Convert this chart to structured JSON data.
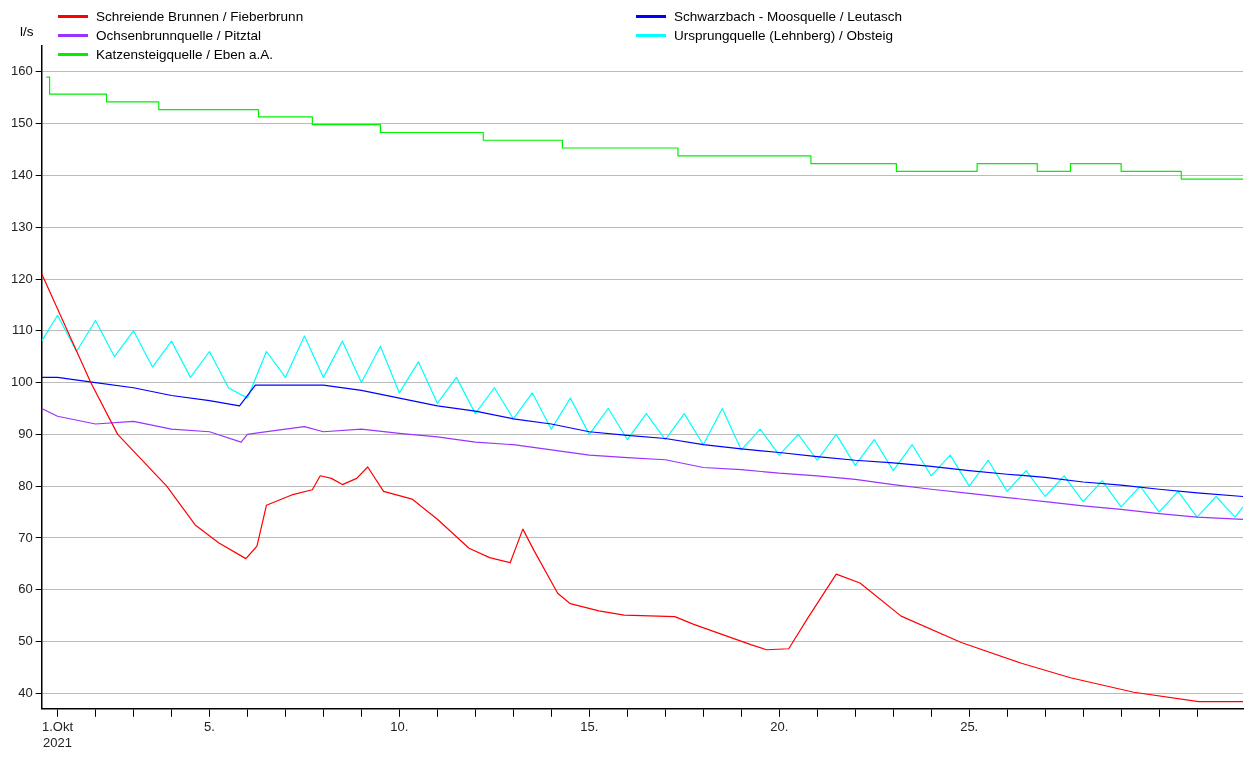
{
  "chart_data": {
    "type": "line",
    "ylabel": "l/s",
    "legend": "top",
    "grid": "y",
    "xlim": [
      "2021-09-30T14:00",
      "2021-11-01T05:00"
    ],
    "xticks": [
      {
        "value": "2021-10-01",
        "label": "1.Okt\n2021"
      },
      {
        "value": "2021-10-02",
        "label": null
      },
      {
        "value": "2021-10-03",
        "label": null
      },
      {
        "value": "2021-10-04",
        "label": null
      },
      {
        "value": "2021-10-05",
        "label": "5."
      },
      {
        "value": "2021-10-06",
        "label": null
      },
      {
        "value": "2021-10-07",
        "label": null
      },
      {
        "value": "2021-10-08",
        "label": null
      },
      {
        "value": "2021-10-09",
        "label": null
      },
      {
        "value": "2021-10-10",
        "label": "10."
      },
      {
        "value": "2021-10-11",
        "label": null
      },
      {
        "value": "2021-10-12",
        "label": null
      },
      {
        "value": "2021-10-13",
        "label": null
      },
      {
        "value": "2021-10-14",
        "label": null
      },
      {
        "value": "2021-10-15",
        "label": "15."
      },
      {
        "value": "2021-10-16",
        "label": null
      },
      {
        "value": "2021-10-17",
        "label": null
      },
      {
        "value": "2021-10-18",
        "label": null
      },
      {
        "value": "2021-10-19",
        "label": null
      },
      {
        "value": "2021-10-20",
        "label": "20."
      },
      {
        "value": "2021-10-21",
        "label": null
      },
      {
        "value": "2021-10-22",
        "label": null
      },
      {
        "value": "2021-10-23",
        "label": null
      },
      {
        "value": "2021-10-24",
        "label": null
      },
      {
        "value": "2021-10-25",
        "label": "25."
      },
      {
        "value": "2021-10-26",
        "label": null
      },
      {
        "value": "2021-10-27",
        "label": null
      },
      {
        "value": "2021-10-28",
        "label": null
      },
      {
        "value": "2021-10-29",
        "label": null
      },
      {
        "value": "2021-10-30",
        "label": null
      },
      {
        "value": "2021-10-31",
        "label": null
      }
    ],
    "ylim": [
      37,
      165
    ],
    "yticks": [
      40,
      50,
      60,
      70,
      80,
      90,
      100,
      110,
      120,
      130,
      140,
      150,
      160
    ],
    "series": [
      {
        "name": "Schreiende Brunnen / Fieberbrunn",
        "color": "#ff0000",
        "x": [
          "2021-09-30T14:00",
          "2021-10-01T21:00",
          "2021-10-02T14:00",
          "2021-10-03T21:00",
          "2021-10-04T15:00",
          "2021-10-05T06:00",
          "2021-10-05T23:00",
          "2021-10-06T06:00",
          "2021-10-06T12:00",
          "2021-10-07T04:00",
          "2021-10-07T17:00",
          "2021-10-07T22:00",
          "2021-10-08T05:00",
          "2021-10-08T12:00",
          "2021-10-08T21:00",
          "2021-10-09T04:00",
          "2021-10-09T14:00",
          "2021-10-10T08:00",
          "2021-10-11T00:00",
          "2021-10-11T20:00",
          "2021-10-12T09:00",
          "2021-10-12T22:00",
          "2021-10-13T06:00",
          "2021-10-13T13:00",
          "2021-10-14T04:00",
          "2021-10-14T12:00",
          "2021-10-15T06:00",
          "2021-10-15T22:00",
          "2021-10-17T06:00",
          "2021-10-17T18:00",
          "2021-10-19T06:00",
          "2021-10-19T16:00",
          "2021-10-20T06:00",
          "2021-10-20T18:00",
          "2021-10-21T12:00",
          "2021-10-22T03:00",
          "2021-10-23T05:00",
          "2021-10-24T19:00",
          "2021-10-26T09:00",
          "2021-10-27T16:00",
          "2021-10-29T08:00",
          "2021-10-31T01:00",
          "2021-11-01T05:00"
        ],
        "values": [
          121,
          100,
          90,
          80,
          72.5,
          69,
          66,
          68.4,
          76.3,
          78.3,
          79.3,
          82,
          81.5,
          80.3,
          81.5,
          83.7,
          79,
          77.5,
          73.6,
          68,
          66.2,
          65.2,
          71.7,
          67.6,
          59.3,
          57.3,
          55.9,
          55.1,
          54.8,
          53.3,
          49.4,
          48.4,
          48.6,
          54.5,
          63,
          61.3,
          54.9,
          49.8,
          45.8,
          43,
          40.2,
          38.4,
          38.4
        ]
      },
      {
        "name": "Schwarzbach - Moosquelle / Leutasch",
        "color": "#0000ff",
        "x": [
          "2021-09-30T14:00",
          "2021-10-01T00:00",
          "2021-10-02T00:00",
          "2021-10-03T00:00",
          "2021-10-04T00:00",
          "2021-10-05T00:00",
          "2021-10-05T19:00",
          "2021-10-06T05:00",
          "2021-10-07T00:00",
          "2021-10-08T00:00",
          "2021-10-09T00:00",
          "2021-10-10T00:00",
          "2021-10-11T00:00",
          "2021-10-12T00:00",
          "2021-10-13T00:00",
          "2021-10-14T00:00",
          "2021-10-15T00:00",
          "2021-10-16T00:00",
          "2021-10-17T00:00",
          "2021-10-18T00:00",
          "2021-10-19T00:00",
          "2021-10-20T00:00",
          "2021-10-21T00:00",
          "2021-10-22T00:00",
          "2021-10-23T00:00",
          "2021-10-24T00:00",
          "2021-10-25T00:00",
          "2021-10-26T00:00",
          "2021-10-27T00:00",
          "2021-10-28T00:00",
          "2021-10-29T00:00",
          "2021-10-30T00:00",
          "2021-10-31T00:00",
          "2021-11-01T05:00"
        ],
        "values": [
          101,
          101,
          100,
          99,
          97.5,
          96.5,
          95.5,
          99.5,
          99.5,
          99.5,
          98.5,
          97,
          95.5,
          94.5,
          93,
          92,
          90.5,
          89.8,
          89.2,
          88,
          87.2,
          86.5,
          85.7,
          85,
          84.5,
          83.8,
          83,
          82.3,
          81.7,
          80.8,
          80.2,
          79.4,
          78.7,
          78
        ]
      },
      {
        "name": "Ochsenbrunnquelle / Pitztal",
        "color": "#9933ff",
        "x": [
          "2021-09-30T14:00",
          "2021-10-01T00:00",
          "2021-10-02T00:00",
          "2021-10-03T00:00",
          "2021-10-04T00:00",
          "2021-10-05T00:00",
          "2021-10-05T20:00",
          "2021-10-06T00:00",
          "2021-10-07T00:00",
          "2021-10-07T12:00",
          "2021-10-08T00:00",
          "2021-10-09T00:00",
          "2021-10-10T00:00",
          "2021-10-11T00:00",
          "2021-10-12T00:00",
          "2021-10-13T00:00",
          "2021-10-14T00:00",
          "2021-10-15T00:00",
          "2021-10-16T00:00",
          "2021-10-17T00:00",
          "2021-10-18T00:00",
          "2021-10-19T00:00",
          "2021-10-20T00:00",
          "2021-10-21T00:00",
          "2021-10-22T00:00",
          "2021-10-23T00:00",
          "2021-10-24T00:00",
          "2021-10-25T00:00",
          "2021-10-26T00:00",
          "2021-10-27T00:00",
          "2021-10-28T00:00",
          "2021-10-29T00:00",
          "2021-10-30T00:00",
          "2021-10-31T00:00",
          "2021-11-01T05:00"
        ],
        "values": [
          95,
          93.5,
          92,
          92.5,
          91,
          90.5,
          88.5,
          90,
          91,
          91.5,
          90.5,
          91,
          90.2,
          89.5,
          88.5,
          88,
          87,
          86,
          85.5,
          85.1,
          83.6,
          83.2,
          82.5,
          82,
          81.3,
          80.3,
          79.4,
          78.6,
          77.8,
          77,
          76.2,
          75.5,
          74.7,
          74,
          73.6
        ]
      },
      {
        "name": "Ursprungquelle (Lehnberg) / Obsteig",
        "color": "#00ffff",
        "x": [
          "2021-09-30T14:00",
          "2021-10-01T00:00",
          "2021-10-01T12:00",
          "2021-10-02T00:00",
          "2021-10-02T12:00",
          "2021-10-03T00:00",
          "2021-10-03T12:00",
          "2021-10-04T00:00",
          "2021-10-04T12:00",
          "2021-10-05T00:00",
          "2021-10-05T12:00",
          "2021-10-06T00:00",
          "2021-10-06T12:00",
          "2021-10-07T00:00",
          "2021-10-07T12:00",
          "2021-10-08T00:00",
          "2021-10-08T12:00",
          "2021-10-09T00:00",
          "2021-10-09T12:00",
          "2021-10-10T00:00",
          "2021-10-10T12:00",
          "2021-10-11T00:00",
          "2021-10-11T12:00",
          "2021-10-12T00:00",
          "2021-10-12T12:00",
          "2021-10-13T00:00",
          "2021-10-13T12:00",
          "2021-10-14T00:00",
          "2021-10-14T12:00",
          "2021-10-15T00:00",
          "2021-10-15T12:00",
          "2021-10-16T00:00",
          "2021-10-16T12:00",
          "2021-10-17T00:00",
          "2021-10-17T12:00",
          "2021-10-18T00:00",
          "2021-10-18T12:00",
          "2021-10-19T00:00",
          "2021-10-19T12:00",
          "2021-10-20T00:00",
          "2021-10-20T12:00",
          "2021-10-21T00:00",
          "2021-10-21T12:00",
          "2021-10-22T00:00",
          "2021-10-22T12:00",
          "2021-10-23T00:00",
          "2021-10-23T12:00",
          "2021-10-24T00:00",
          "2021-10-24T12:00",
          "2021-10-25T00:00",
          "2021-10-25T12:00",
          "2021-10-26T00:00",
          "2021-10-26T12:00",
          "2021-10-27T00:00",
          "2021-10-27T12:00",
          "2021-10-28T00:00",
          "2021-10-28T12:00",
          "2021-10-29T00:00",
          "2021-10-29T12:00",
          "2021-10-30T00:00",
          "2021-10-30T12:00",
          "2021-10-31T00:00",
          "2021-10-31T12:00",
          "2021-11-01T00:00",
          "2021-11-01T05:00"
        ],
        "values": [
          108,
          113,
          106,
          112,
          105,
          110,
          103,
          108,
          101,
          106,
          99,
          97,
          106,
          101,
          109,
          101,
          108,
          100,
          107,
          98,
          104,
          96,
          101,
          94,
          99,
          93,
          98,
          91,
          97,
          90,
          95,
          89,
          94,
          89,
          94,
          88,
          95,
          87,
          91,
          86,
          90,
          85,
          90,
          84,
          89,
          83,
          88,
          82,
          86,
          80,
          85,
          79,
          83,
          78,
          82,
          77,
          81,
          76,
          80,
          75,
          79,
          74,
          78,
          74,
          76
        ]
      },
      {
        "name": "Katzensteigquelle / Eben a.A.",
        "color": "#00ee00",
        "type": "step",
        "x": [
          "2021-09-30T17:00",
          "2021-09-30T19:00",
          "2021-10-02T07:00",
          "2021-10-03T16:00",
          "2021-10-06T07:00",
          "2021-10-07T17:00",
          "2021-10-09T12:00",
          "2021-10-12T05:00",
          "2021-10-14T07:00",
          "2021-10-17T08:00",
          "2021-10-20T20:00",
          "2021-10-23T02:00",
          "2021-10-25T05:00",
          "2021-10-26T19:00",
          "2021-10-27T16:00",
          "2021-10-29T00:00",
          "2021-10-30T14:00",
          "2021-11-01T05:00"
        ],
        "values": [
          159,
          155.7,
          154.2,
          152.7,
          151.3,
          149.8,
          148.3,
          146.8,
          145.3,
          143.8,
          142.3,
          140.8,
          142.3,
          140.8,
          142.3,
          140.8,
          139.3,
          139.3
        ]
      }
    ]
  }
}
